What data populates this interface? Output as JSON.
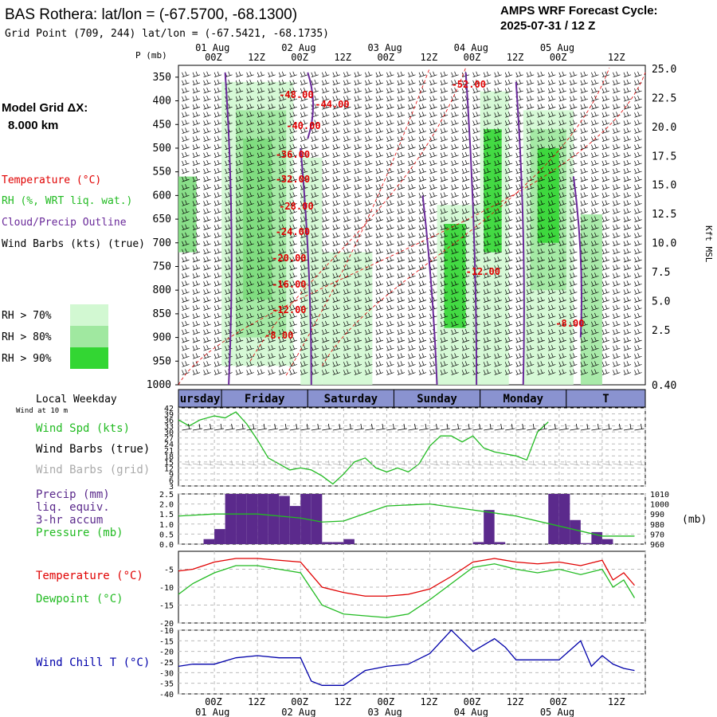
{
  "header": {
    "title": "BAS Rothera:  lat/lon = (-67.5700, -68.1300)",
    "grid_point": "Grid Point (709, 244) lat/lon = (-67.5421, -68.1735)",
    "model_name": "AMPS WRF Forecast Cycle:",
    "cycle": "2025-07-31 / 12  Z"
  },
  "left_panel": {
    "model_grid_line1": "Model Grid ΔX:",
    "model_grid_line2": "8.000 km",
    "legend_temperature": "Temperature (°C)",
    "legend_rh": "RH (%, WRT liq. wat.)",
    "legend_cloud": "Cloud/Precip Outline",
    "legend_wind": "Wind Barbs (kts) (true)",
    "rh_key": [
      {
        "label": "RH > 70%",
        "color": "#d2f8d2"
      },
      {
        "label": "RH > 80%",
        "color": "#a0e8a0"
      },
      {
        "label": "RH > 90%",
        "color": "#33d633"
      }
    ]
  },
  "time_axis": {
    "top_dates": [
      "01 Aug",
      "02 Aug",
      "03 Aug",
      "04 Aug",
      "05 Aug"
    ],
    "hour_ticks": [
      "00Z",
      "12Z",
      "00Z",
      "12Z",
      "00Z",
      "12Z",
      "00Z",
      "12Z",
      "00Z",
      "12Z"
    ],
    "bottom_hour_ticks": [
      "00Z",
      "12Z",
      "00Z",
      "12Z",
      "00Z",
      "12Z",
      "00Z",
      "12Z",
      "00Z",
      "12Z"
    ],
    "bottom_dates": [
      "01 Aug",
      "02 Aug",
      "03 Aug",
      "04 Aug",
      "05 Aug"
    ]
  },
  "weekday_bar": {
    "title": "Local Weekday",
    "subtitle": "Wind at 10 m",
    "days": [
      "ursday",
      "Friday",
      "Saturday",
      "Sunday",
      "Monday",
      "T"
    ]
  },
  "colors": {
    "temperature": "#e00000",
    "rh": "#22bb22",
    "cloud": "#6a2a9a",
    "precip": "#5b2a8c",
    "pressure": "#22bb22",
    "wind_speed": "#22bb22",
    "dewpoint": "#22bb22",
    "wind_chill": "#0000aa",
    "wind_grid": "#aaaaaa"
  },
  "chart_data": [
    {
      "type": "heatmap",
      "ylabel": "P (mb)",
      "y2label": "Kft MSL",
      "y_ticks": [
        "350",
        "400",
        "450",
        "500",
        "550",
        "600",
        "650",
        "700",
        "750",
        "800",
        "850",
        "900",
        "950",
        "1000"
      ],
      "y2_ticks": [
        "25.0",
        "22.5",
        "20.0",
        "17.5",
        "15.0",
        "12.5",
        "10.0",
        "7.5",
        "5.0",
        "2.5",
        "0.40"
      ],
      "temperature_labels": [
        "-52.00",
        "-48.00",
        "-44.00",
        "-40.00",
        "-36.00",
        "-32.00",
        "-28.00",
        "-24.00",
        "-20.00",
        "-16.00",
        "-12.00",
        "-8.00",
        "-12.00",
        "-8.00"
      ]
    },
    {
      "type": "line",
      "legend": [
        "Wind Spd (kts)",
        "Wind Barbs (true)",
        "Wind Barbs (grid)"
      ],
      "y_ticks": [
        "42",
        "39",
        "36",
        "33",
        "30",
        "27",
        "24",
        "21",
        "18",
        "15",
        "12",
        "9",
        "6",
        "3"
      ],
      "ylim": [
        3,
        42
      ],
      "x_hours": [
        0,
        6,
        12,
        18,
        24,
        30,
        36,
        42,
        48,
        54,
        60,
        66,
        72,
        78,
        84,
        90,
        96,
        102,
        108,
        114,
        120
      ],
      "values": [
        36,
        33,
        36,
        38,
        37,
        40,
        34,
        26,
        17,
        14,
        11,
        12,
        11,
        8,
        4,
        9,
        15,
        17,
        12,
        10,
        12,
        10,
        14,
        23,
        28,
        28,
        25,
        28,
        22,
        20,
        19,
        18,
        16,
        30,
        35
      ],
      "x": [
        -10,
        -7,
        -4,
        0,
        3,
        6,
        9,
        12,
        15,
        18,
        21,
        24,
        27,
        30,
        33,
        36,
        39,
        42,
        45,
        48,
        51,
        54,
        57,
        60,
        63,
        66,
        69,
        72,
        75,
        78,
        81,
        84,
        87,
        90,
        93
      ]
    },
    {
      "type": "bar",
      "legend": [
        "Precip (mm)",
        "liq. equiv.",
        "3-hr accum",
        "Pressure (mb)"
      ],
      "y_ticks": [
        "2.5",
        "2.0",
        "1.5",
        "1.0",
        "0.5",
        "0.0"
      ],
      "y2_ticks": [
        "1010",
        "1000",
        "990",
        "980",
        "970",
        "960"
      ],
      "y2label": "(mb)",
      "ylim": [
        0,
        2.5
      ],
      "y2lim": [
        960,
        1010
      ],
      "precip_x": [
        -3,
        0,
        3,
        6,
        9,
        12,
        15,
        18,
        21,
        24,
        27,
        30,
        33,
        36,
        39,
        42,
        45,
        48,
        51,
        54,
        57,
        60,
        63,
        66,
        69,
        72,
        75,
        78,
        81,
        84,
        87,
        90,
        93,
        96,
        99,
        102,
        105,
        108,
        111,
        114,
        117
      ],
      "precip_values": [
        0.25,
        0.75,
        2.5,
        2.5,
        2.5,
        2.5,
        2.5,
        2.4,
        1.9,
        2.6,
        2.6,
        0.1,
        0.1,
        0.25,
        0.0,
        0.0,
        0.0,
        0.0,
        0.0,
        0.0,
        0.0,
        0.0,
        0.0,
        0.0,
        0.0,
        0.1,
        1.7,
        0.1,
        0.0,
        0.0,
        0.0,
        0.0,
        2.6,
        2.5,
        1.2,
        0.05,
        0.6,
        0.25,
        0.0,
        0.0,
        0.0
      ],
      "pressure_x": [
        -10,
        0,
        12,
        24,
        30,
        36,
        48,
        60,
        72,
        84,
        96,
        108,
        117
      ],
      "pressure_values": [
        988,
        990,
        990,
        986,
        982,
        983,
        998,
        1000,
        994,
        988,
        978,
        968,
        968
      ]
    },
    {
      "type": "line",
      "legend": [
        "Temperature (°C)",
        "Dewpoint (°C)"
      ],
      "y_ticks": [
        "-5",
        "-10",
        "-15",
        "-20"
      ],
      "ylim": [
        -20,
        0
      ],
      "x": [
        -10,
        -6,
        0,
        6,
        12,
        18,
        24,
        30,
        36,
        42,
        48,
        54,
        60,
        66,
        72,
        78,
        84,
        90,
        96,
        102,
        108,
        111,
        114,
        117
      ],
      "temperature": [
        -5.5,
        -5,
        -3,
        -2,
        -2,
        -2.5,
        -3,
        -10,
        -11.5,
        -12.5,
        -12.5,
        -12,
        -10.5,
        -7,
        -3,
        -2,
        -3,
        -3.5,
        -3,
        -4,
        -2.5,
        -8,
        -6,
        -9.5
      ],
      "dewpoint": [
        -12,
        -9,
        -6,
        -4,
        -4,
        -5,
        -6,
        -15,
        -17.5,
        -18,
        -18.5,
        -17.5,
        -13.5,
        -9,
        -4.5,
        -3.5,
        -5,
        -6,
        -5,
        -6.5,
        -5,
        -10,
        -8,
        -13
      ]
    },
    {
      "type": "line",
      "legend": [
        "Wind Chill T (°C)"
      ],
      "y_ticks": [
        "-10",
        "-15",
        "-20",
        "-25",
        "-30",
        "-35",
        "-40"
      ],
      "ylim": [
        -40,
        -10
      ],
      "x": [
        -10,
        -6,
        0,
        6,
        12,
        18,
        24,
        27,
        30,
        36,
        42,
        48,
        54,
        60,
        66,
        69,
        72,
        78,
        81,
        84,
        90,
        96,
        102,
        105,
        108,
        111,
        114,
        117
      ],
      "values": [
        -27,
        -26,
        -26,
        -23,
        -22,
        -23,
        -23,
        -34,
        -36,
        -36,
        -29,
        -27,
        -26,
        -21,
        -10,
        -15,
        -20,
        -14,
        -18,
        -24,
        -24,
        -24,
        -15,
        -27,
        -22,
        -26,
        -28,
        -29
      ]
    }
  ]
}
